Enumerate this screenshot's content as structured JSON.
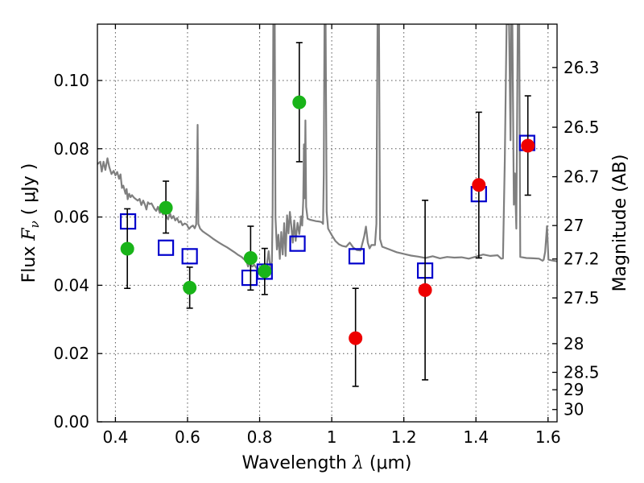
{
  "chart_data": {
    "type": "scatter",
    "title": "",
    "xlabel_prefix": "Wavelength  ",
    "xlabel_symbol": "λ",
    "xlabel_unit": " (μm)",
    "ylabel_prefix": "Flux  ",
    "ylabel_symbol": "F",
    "ylabel_subscript": "ν",
    "ylabel_unit": "  ( μJy )",
    "y2label": "Magnitude (AB)",
    "xlim": [
      0.35,
      1.625
    ],
    "ylim": [
      0.0,
      0.1165
    ],
    "xticks": [
      {
        "v": 0.4,
        "label": "0.4"
      },
      {
        "v": 0.6,
        "label": "0.6"
      },
      {
        "v": 0.8,
        "label": "0.8"
      },
      {
        "v": 1.0,
        "label": "1"
      },
      {
        "v": 1.2,
        "label": "1.2"
      },
      {
        "v": 1.4,
        "label": "1.4"
      },
      {
        "v": 1.6,
        "label": "1.6"
      }
    ],
    "yticks": [
      {
        "v": 0.0,
        "label": "0.00"
      },
      {
        "v": 0.02,
        "label": "0.02"
      },
      {
        "v": 0.04,
        "label": "0.04"
      },
      {
        "v": 0.06,
        "label": "0.06"
      },
      {
        "v": 0.08,
        "label": "0.08"
      },
      {
        "v": 0.1,
        "label": "0.10"
      }
    ],
    "y2ticks": [
      {
        "flux": 0.1038,
        "label": "26.3"
      },
      {
        "flux": 0.0863,
        "label": "26.5"
      },
      {
        "flux": 0.0718,
        "label": "26.7"
      },
      {
        "flux": 0.0575,
        "label": "27"
      },
      {
        "flux": 0.0477,
        "label": "27.2"
      },
      {
        "flux": 0.0363,
        "label": "27.5"
      },
      {
        "flux": 0.0229,
        "label": "28"
      },
      {
        "flux": 0.0145,
        "label": "28.5"
      },
      {
        "flux": 0.0094,
        "label": "29"
      },
      {
        "flux": 0.0036,
        "label": "30"
      }
    ],
    "series": [
      {
        "name": "green_detections",
        "marker": "circle",
        "color": "#19b419",
        "points": [
          {
            "x": 0.433,
            "y": 0.0507,
            "ylo": 0.0391,
            "yhi": 0.0624
          },
          {
            "x": 0.54,
            "y": 0.0627,
            "ylo": 0.0553,
            "yhi": 0.0705
          },
          {
            "x": 0.606,
            "y": 0.0393,
            "ylo": 0.0333,
            "yhi": 0.0453
          },
          {
            "x": 0.775,
            "y": 0.048,
            "ylo": 0.0386,
            "yhi": 0.0573
          },
          {
            "x": 0.814,
            "y": 0.0441,
            "ylo": 0.0373,
            "yhi": 0.0508
          },
          {
            "x": 0.91,
            "y": 0.0936,
            "ylo": 0.0762,
            "yhi": 0.1111
          }
        ]
      },
      {
        "name": "red_detections",
        "marker": "circle",
        "color": "#ee0000",
        "points": [
          {
            "x": 1.066,
            "y": 0.0245,
            "ylo": 0.0104,
            "yhi": 0.0391
          },
          {
            "x": 1.259,
            "y": 0.0386,
            "ylo": 0.0123,
            "yhi": 0.0649
          },
          {
            "x": 1.408,
            "y": 0.0694,
            "ylo": 0.048,
            "yhi": 0.0907
          },
          {
            "x": 1.544,
            "y": 0.0809,
            "ylo": 0.0664,
            "yhi": 0.0955
          }
        ]
      },
      {
        "name": "model_photometry",
        "marker": "square",
        "color": "#0000cc",
        "points": [
          {
            "x": 0.435,
            "y": 0.0587
          },
          {
            "x": 0.54,
            "y": 0.051
          },
          {
            "x": 0.606,
            "y": 0.0485
          },
          {
            "x": 0.772,
            "y": 0.0422
          },
          {
            "x": 0.814,
            "y": 0.044
          },
          {
            "x": 0.905,
            "y": 0.0522
          },
          {
            "x": 1.069,
            "y": 0.0485
          },
          {
            "x": 1.259,
            "y": 0.0443
          },
          {
            "x": 1.408,
            "y": 0.0667
          },
          {
            "x": 1.542,
            "y": 0.0817
          }
        ]
      }
    ],
    "model_spectrum": {
      "name": "best_fit_sed",
      "color": "#7f7f7f",
      "points": [
        [
          0.35,
          0.0755
        ],
        [
          0.358,
          0.0762
        ],
        [
          0.362,
          0.0733
        ],
        [
          0.367,
          0.0762
        ],
        [
          0.372,
          0.0738
        ],
        [
          0.378,
          0.0772
        ],
        [
          0.383,
          0.0746
        ],
        [
          0.389,
          0.0726
        ],
        [
          0.395,
          0.0735
        ],
        [
          0.4,
          0.0722
        ],
        [
          0.405,
          0.0732
        ],
        [
          0.41,
          0.0712
        ],
        [
          0.414,
          0.0725
        ],
        [
          0.418,
          0.0685
        ],
        [
          0.422,
          0.0692
        ],
        [
          0.428,
          0.0668
        ],
        [
          0.431,
          0.0682
        ],
        [
          0.434,
          0.0652
        ],
        [
          0.438,
          0.0668
        ],
        [
          0.442,
          0.0658
        ],
        [
          0.446,
          0.0664
        ],
        [
          0.452,
          0.0656
        ],
        [
          0.457,
          0.0652
        ],
        [
          0.462,
          0.0648
        ],
        [
          0.467,
          0.0653
        ],
        [
          0.472,
          0.0635
        ],
        [
          0.477,
          0.0648
        ],
        [
          0.482,
          0.0636
        ],
        [
          0.486,
          0.0622
        ],
        [
          0.49,
          0.0643
        ],
        [
          0.495,
          0.0638
        ],
        [
          0.5,
          0.064
        ],
        [
          0.504,
          0.0632
        ],
        [
          0.508,
          0.0624
        ],
        [
          0.513,
          0.0618
        ],
        [
          0.518,
          0.063
        ],
        [
          0.523,
          0.0612
        ],
        [
          0.528,
          0.0618
        ],
        [
          0.532,
          0.0607
        ],
        [
          0.536,
          0.0614
        ],
        [
          0.541,
          0.0603
        ],
        [
          0.546,
          0.0593
        ],
        [
          0.551,
          0.0612
        ],
        [
          0.556,
          0.0596
        ],
        [
          0.561,
          0.0603
        ],
        [
          0.566,
          0.059
        ],
        [
          0.571,
          0.0597
        ],
        [
          0.576,
          0.0584
        ],
        [
          0.581,
          0.0588
        ],
        [
          0.586,
          0.0576
        ],
        [
          0.592,
          0.0581
        ],
        [
          0.598,
          0.0578
        ],
        [
          0.604,
          0.0565
        ],
        [
          0.61,
          0.0572
        ],
        [
          0.615,
          0.0575
        ],
        [
          0.62,
          0.0567
        ],
        [
          0.624,
          0.0578
        ],
        [
          0.626,
          0.068
        ],
        [
          0.628,
          0.087
        ],
        [
          0.63,
          0.058
        ],
        [
          0.635,
          0.0566
        ],
        [
          0.642,
          0.0558
        ],
        [
          0.65,
          0.0552
        ],
        [
          0.66,
          0.0545
        ],
        [
          0.67,
          0.0537
        ],
        [
          0.68,
          0.053
        ],
        [
          0.69,
          0.0523
        ],
        [
          0.7,
          0.0517
        ],
        [
          0.71,
          0.0511
        ],
        [
          0.72,
          0.0504
        ],
        [
          0.73,
          0.0497
        ],
        [
          0.74,
          0.0489
        ],
        [
          0.75,
          0.0483
        ],
        [
          0.76,
          0.0473
        ],
        [
          0.765,
          0.0465
        ],
        [
          0.768,
          0.0455
        ],
        [
          0.772,
          0.0467
        ],
        [
          0.776,
          0.0458
        ],
        [
          0.78,
          0.0455
        ],
        [
          0.785,
          0.046
        ],
        [
          0.79,
          0.0452
        ],
        [
          0.795,
          0.0445
        ],
        [
          0.8,
          0.0441
        ],
        [
          0.805,
          0.045
        ],
        [
          0.81,
          0.0444
        ],
        [
          0.815,
          0.0438
        ],
        [
          0.82,
          0.046
        ],
        [
          0.825,
          0.05
        ],
        [
          0.83,
          0.0445
        ],
        [
          0.834,
          0.047
        ],
        [
          0.836,
          0.0625
        ],
        [
          0.838,
          0.1165
        ],
        [
          0.842,
          0.1165
        ],
        [
          0.844,
          0.06
        ],
        [
          0.848,
          0.0505
        ],
        [
          0.852,
          0.0548
        ],
        [
          0.856,
          0.0477
        ],
        [
          0.86,
          0.0556
        ],
        [
          0.864,
          0.049
        ],
        [
          0.868,
          0.0582
        ],
        [
          0.872,
          0.0486
        ],
        [
          0.876,
          0.0605
        ],
        [
          0.88,
          0.0552
        ],
        [
          0.884,
          0.0615
        ],
        [
          0.888,
          0.0573
        ],
        [
          0.892,
          0.0525
        ],
        [
          0.896,
          0.059
        ],
        [
          0.9,
          0.053
        ],
        [
          0.905,
          0.0583
        ],
        [
          0.91,
          0.055
        ],
        [
          0.915,
          0.0602
        ],
        [
          0.918,
          0.0575
        ],
        [
          0.921,
          0.0648
        ],
        [
          0.923,
          0.0813
        ],
        [
          0.925,
          0.0655
        ],
        [
          0.927,
          0.0883
        ],
        [
          0.929,
          0.063
        ],
        [
          0.933,
          0.0595
        ],
        [
          0.94,
          0.0592
        ],
        [
          0.948,
          0.059
        ],
        [
          0.956,
          0.0588
        ],
        [
          0.964,
          0.0587
        ],
        [
          0.972,
          0.0585
        ],
        [
          0.976,
          0.058
        ],
        [
          0.978,
          0.0725
        ],
        [
          0.98,
          0.1165
        ],
        [
          0.983,
          0.1165
        ],
        [
          0.986,
          0.0615
        ],
        [
          0.99,
          0.0566
        ],
        [
          1.0,
          0.0547
        ],
        [
          1.01,
          0.053
        ],
        [
          1.02,
          0.052
        ],
        [
          1.03,
          0.0515
        ],
        [
          1.04,
          0.0513
        ],
        [
          1.05,
          0.0525
        ],
        [
          1.06,
          0.051
        ],
        [
          1.07,
          0.0503
        ],
        [
          1.08,
          0.0502
        ],
        [
          1.09,
          0.0543
        ],
        [
          1.095,
          0.0572
        ],
        [
          1.1,
          0.0525
        ],
        [
          1.105,
          0.0508
        ],
        [
          1.11,
          0.0518
        ],
        [
          1.12,
          0.0518
        ],
        [
          1.124,
          0.058
        ],
        [
          1.127,
          0.1165
        ],
        [
          1.131,
          0.1165
        ],
        [
          1.134,
          0.0535
        ],
        [
          1.14,
          0.0513
        ],
        [
          1.16,
          0.0505
        ],
        [
          1.18,
          0.0497
        ],
        [
          1.2,
          0.0492
        ],
        [
          1.22,
          0.0487
        ],
        [
          1.24,
          0.0484
        ],
        [
          1.26,
          0.048
        ],
        [
          1.28,
          0.0485
        ],
        [
          1.3,
          0.0479
        ],
        [
          1.32,
          0.0483
        ],
        [
          1.34,
          0.0481
        ],
        [
          1.36,
          0.0482
        ],
        [
          1.38,
          0.0478
        ],
        [
          1.4,
          0.0484
        ],
        [
          1.42,
          0.049
        ],
        [
          1.44,
          0.0486
        ],
        [
          1.46,
          0.0488
        ],
        [
          1.47,
          0.0478
        ],
        [
          1.475,
          0.0479
        ],
        [
          1.48,
          0.0768
        ],
        [
          1.485,
          0.1165
        ],
        [
          1.492,
          0.1165
        ],
        [
          1.496,
          0.0825
        ],
        [
          1.498,
          0.1165
        ],
        [
          1.501,
          0.1165
        ],
        [
          1.505,
          0.0636
        ],
        [
          1.508,
          0.0728
        ],
        [
          1.512,
          0.0566
        ],
        [
          1.516,
          0.1165
        ],
        [
          1.52,
          0.1165
        ],
        [
          1.523,
          0.0483
        ],
        [
          1.54,
          0.048
        ],
        [
          1.56,
          0.0479
        ],
        [
          1.575,
          0.0478
        ],
        [
          1.585,
          0.0472
        ],
        [
          1.588,
          0.0475
        ],
        [
          1.592,
          0.0498
        ],
        [
          1.597,
          0.0573
        ],
        [
          1.601,
          0.0475
        ],
        [
          1.61,
          0.0473
        ],
        [
          1.625,
          0.047
        ]
      ]
    }
  }
}
